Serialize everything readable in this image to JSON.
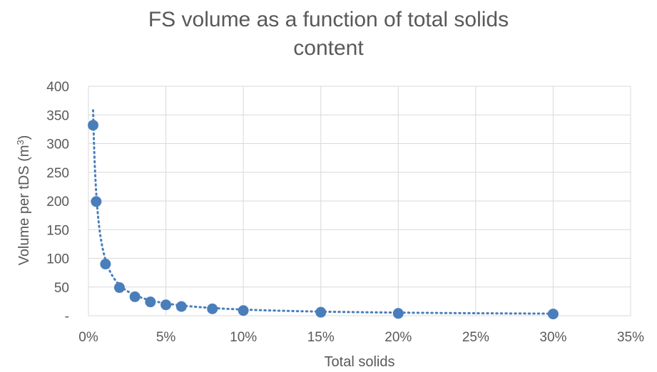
{
  "chart_data": {
    "type": "scatter",
    "title_line1": "FS volume as a function of total solids",
    "title_line2": "content",
    "xlabel": "Total solids",
    "ylabel_main": "Volume per tDS (m",
    "ylabel_sup": "3",
    "ylabel_end": ")",
    "xlim": [
      0,
      0.35
    ],
    "ylim": [
      0,
      400
    ],
    "x_ticks": [
      0,
      0.05,
      0.1,
      0.15,
      0.2,
      0.25,
      0.3,
      0.35
    ],
    "x_tick_labels": [
      "0%",
      "5%",
      "10%",
      "15%",
      "20%",
      "25%",
      "30%",
      "35%"
    ],
    "y_ticks": [
      0,
      50,
      100,
      150,
      200,
      250,
      300,
      350,
      400
    ],
    "y_tick_labels": [
      "-",
      "50",
      "100",
      "150",
      "200",
      "250",
      "300",
      "350",
      "400"
    ],
    "grid": true,
    "legend": "none",
    "series": [
      {
        "marker_color": "#4A7EBB",
        "x": [
          0.003,
          0.005,
          0.011,
          0.02,
          0.03,
          0.04,
          0.05,
          0.06,
          0.08,
          0.1,
          0.15,
          0.2,
          0.3
        ],
        "y": [
          332,
          199,
          90,
          49,
          33,
          24,
          19,
          16,
          12,
          9,
          6,
          4,
          3
        ]
      }
    ],
    "trendline": {
      "style": "dotted",
      "color": "#4A7EBB",
      "x_start": 0.003,
      "x_end": 0.3,
      "y_at_start": 358
    }
  }
}
